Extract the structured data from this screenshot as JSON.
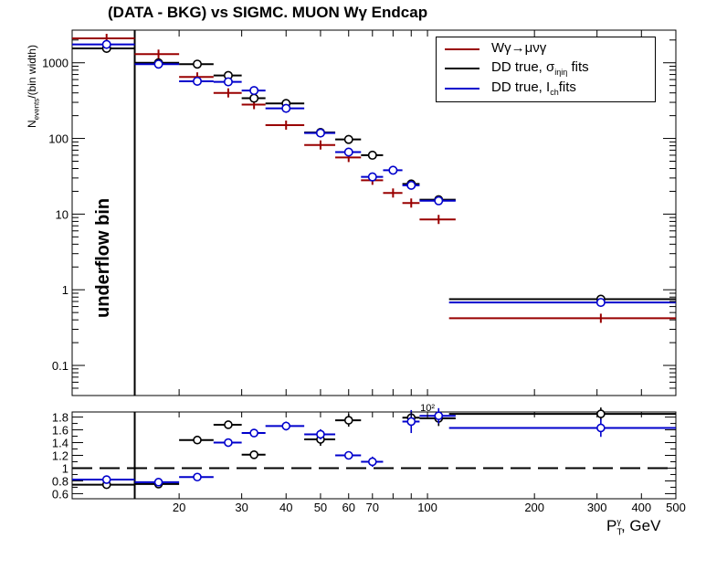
{
  "title": "(DATA - BKG) vs SIGMC. MUON Wγ  Endcap",
  "ylabel": "N_events/(bin width)",
  "xlabel": "P_T^γ, GeV",
  "underflow_label": "underflow bin",
  "legend": [
    {
      "label": "Wγ→μνγ",
      "color": "#990000"
    },
    {
      "label": "DD true, σ_iηiη fits",
      "color": "#000000"
    },
    {
      "label": "DD true, I_ch fits",
      "color": "#0000cc"
    }
  ],
  "chart_data": [
    {
      "type": "scatter",
      "panel": "main",
      "x_scale": "log",
      "y_scale": "log",
      "xlim": [
        10,
        500
      ],
      "ylim": [
        0.04,
        2700
      ],
      "y_ticks": [
        "0.1",
        "1",
        "10",
        "100",
        "1000"
      ],
      "underflow_edge": 15,
      "series": [
        {
          "name": "Wγ→μνγ",
          "color": "#990000",
          "x": [
            12.5,
            17.5,
            22.5,
            27.5,
            32.5,
            40,
            50,
            60,
            70,
            80,
            90,
            107.5,
            307.5
          ],
          "xlo": [
            10,
            15,
            20,
            25,
            30,
            35,
            45,
            55,
            65,
            75,
            85,
            95,
            115
          ],
          "xhi": [
            15,
            20,
            25,
            30,
            35,
            45,
            55,
            65,
            75,
            85,
            95,
            120,
            500
          ],
          "y": [
            2100,
            1300,
            650,
            400,
            280,
            150,
            82,
            56,
            28,
            19,
            14,
            8.5,
            0.42
          ]
        },
        {
          "name": "DD true, σ_iηiη fits",
          "color": "#000000",
          "x": [
            12.5,
            17.5,
            22.5,
            27.5,
            32.5,
            40,
            50,
            60,
            70,
            90,
            107.5,
            307.5
          ],
          "xlo": [
            10,
            15,
            20,
            25,
            30,
            35,
            45,
            55,
            65,
            85,
            95,
            115
          ],
          "xhi": [
            15,
            20,
            25,
            30,
            35,
            45,
            55,
            65,
            75,
            95,
            120,
            500
          ],
          "y": [
            1550,
            1000,
            960,
            680,
            340,
            290,
            120,
            97,
            60,
            25,
            15.5,
            0.75
          ]
        },
        {
          "name": "DD true, I_ch fits",
          "color": "#0000cc",
          "x": [
            12.5,
            17.5,
            22.5,
            27.5,
            32.5,
            40,
            50,
            60,
            70,
            80,
            90,
            107.5,
            307.5
          ],
          "xlo": [
            10,
            15,
            20,
            25,
            30,
            35,
            45,
            55,
            65,
            75,
            85,
            95,
            115
          ],
          "xhi": [
            15,
            20,
            25,
            30,
            35,
            45,
            55,
            65,
            75,
            85,
            95,
            120,
            500
          ],
          "y": [
            1750,
            960,
            570,
            560,
            430,
            250,
            118,
            66,
            31,
            38,
            24,
            15,
            0.68
          ]
        }
      ]
    },
    {
      "type": "scatter",
      "panel": "ratio",
      "x_scale": "log",
      "xlim": [
        10,
        500
      ],
      "ylim": [
        0.52,
        1.88
      ],
      "reference_line": 1,
      "x_tick_labels": [
        "20",
        "30",
        "40",
        "50",
        "60",
        "70",
        "100",
        "200",
        "300",
        "400",
        "500"
      ],
      "x_tick_values": [
        20,
        30,
        40,
        50,
        60,
        70,
        100,
        200,
        300,
        400,
        500
      ],
      "y_ticks": [
        "0.6",
        "0.8",
        "1",
        "1.2",
        "1.4",
        "1.6",
        "1.8"
      ],
      "exponent_label": "10²",
      "series": [
        {
          "name": "DD true, σ_iηiη fits",
          "color": "#000000",
          "x": [
            12.5,
            17.5,
            22.5,
            27.5,
            32.5,
            50,
            60,
            90,
            107.5,
            307.5
          ],
          "xlo": [
            10,
            15,
            20,
            25,
            30,
            45,
            55,
            85,
            95,
            115
          ],
          "xhi": [
            15,
            20,
            25,
            30,
            35,
            55,
            65,
            95,
            120,
            500
          ],
          "y": [
            0.74,
            0.75,
            1.44,
            1.68,
            1.21,
            1.45,
            1.75,
            1.79,
            1.78,
            1.85
          ],
          "err": [
            0.03,
            0.04,
            0.03,
            0.04,
            0.04,
            0.1,
            0.1,
            0.1,
            0.12,
            0.1
          ]
        },
        {
          "name": "DD true, I_ch fits",
          "color": "#0000cc",
          "x": [
            12.5,
            17.5,
            22.5,
            27.5,
            32.5,
            40,
            50,
            60,
            70,
            90,
            107.5,
            307.5
          ],
          "xlo": [
            10,
            15,
            20,
            25,
            30,
            35,
            45,
            55,
            65,
            85,
            95,
            115
          ],
          "xhi": [
            15,
            20,
            25,
            30,
            35,
            45,
            55,
            65,
            75,
            95,
            120,
            500
          ],
          "y": [
            0.82,
            0.78,
            0.86,
            1.4,
            1.55,
            1.66,
            1.53,
            1.2,
            1.1,
            1.73,
            1.82,
            1.63
          ],
          "err": [
            0.02,
            0.03,
            0.02,
            0.04,
            0.05,
            0.07,
            0.08,
            0.06,
            0.08,
            0.18,
            0.12,
            0.14
          ]
        }
      ]
    }
  ]
}
